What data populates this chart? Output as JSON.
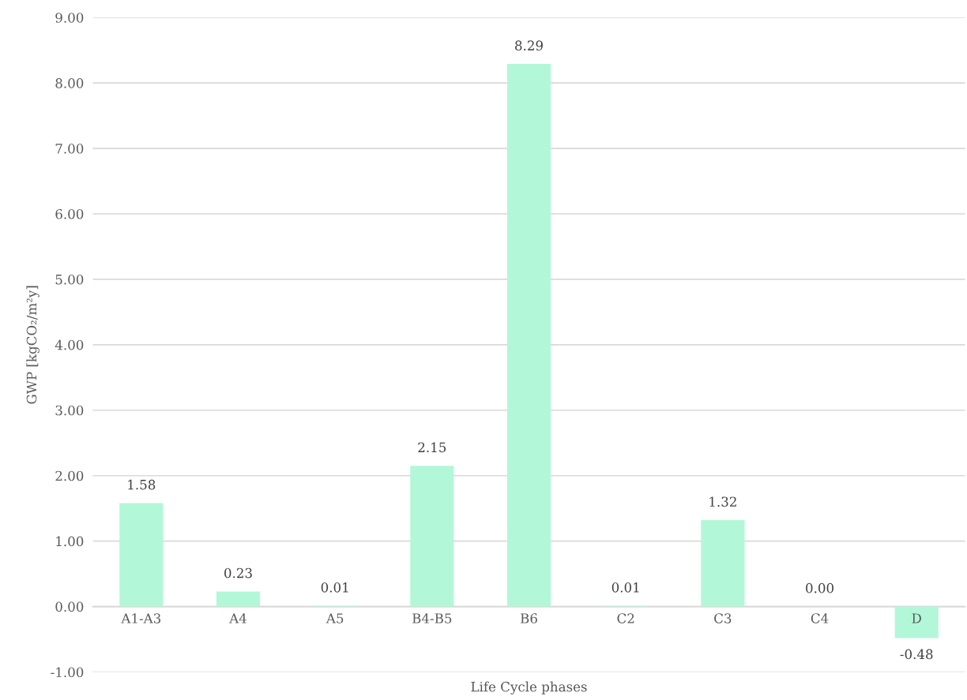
{
  "chart_data": {
    "type": "bar",
    "xlabel": "Life Cycle phases",
    "ylabel": "GWP [kgCO₂/m²y]",
    "categories": [
      "A1-A3",
      "A4",
      "A5",
      "B4-B5",
      "B6",
      "C2",
      "C3",
      "C4",
      "D"
    ],
    "values": [
      1.58,
      0.23,
      0.01,
      2.15,
      8.29,
      0.01,
      1.32,
      0.0,
      -0.48
    ],
    "value_labels": [
      "1.58",
      "0.23",
      "0.01",
      "2.15",
      "8.29",
      "0.01",
      "1.32",
      "0.00",
      "-0.48"
    ],
    "color": "#b3f7d9",
    "ylim": [
      -1,
      9
    ],
    "yticks": [
      {
        "value": -1,
        "label": "-1.00"
      },
      {
        "value": 0,
        "label": "0.00"
      },
      {
        "value": 1,
        "label": "1.00"
      },
      {
        "value": 2,
        "label": "2.00"
      },
      {
        "value": 3,
        "label": "3.00"
      },
      {
        "value": 4,
        "label": "4.00"
      },
      {
        "value": 5,
        "label": "5.00"
      },
      {
        "value": 6,
        "label": "6.00"
      },
      {
        "value": 7,
        "label": "7.00"
      },
      {
        "value": 8,
        "label": "8.00"
      },
      {
        "value": 9,
        "label": "9.00"
      }
    ],
    "grid": "y",
    "legend": false
  }
}
